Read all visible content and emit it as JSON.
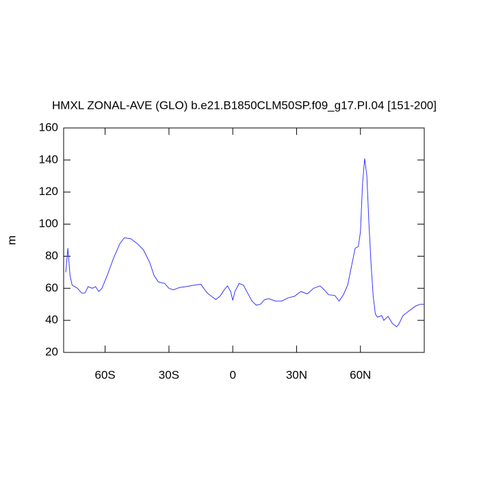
{
  "chart_data": {
    "type": "line",
    "title": "HMXL ZONAL-AVE (GLO) b.e21.B1850CLM50SP.f09_g17.PI.04 [151-200]",
    "y_label": "m",
    "color": "#3333ff",
    "x": [
      -78.5,
      -77.5,
      -76.5,
      -75.5,
      -73,
      -71,
      -69.5,
      -68,
      -66,
      -64.5,
      -63,
      -61.5,
      -59,
      -56,
      -53,
      -51,
      -48,
      -45,
      -42,
      -39,
      -37,
      -35,
      -32,
      -30,
      -28,
      -25,
      -22,
      -18,
      -15,
      -12,
      -10,
      -8,
      -6,
      -4,
      -2.5,
      -1,
      0,
      1,
      3,
      5,
      7,
      9,
      11,
      13,
      15,
      17,
      20,
      23,
      26,
      29,
      32,
      35,
      38,
      41,
      43,
      45,
      48,
      50,
      52,
      54,
      56,
      57.5,
      59,
      60,
      61,
      62,
      63,
      64,
      65,
      66,
      67,
      68,
      70,
      71,
      73,
      75,
      77,
      78,
      80,
      82,
      84,
      86,
      88,
      90
    ],
    "values": [
      70,
      85,
      68,
      62,
      60,
      57,
      57,
      61,
      60,
      61,
      58,
      60,
      68,
      79,
      88,
      91.5,
      91,
      88,
      84,
      76,
      68,
      64,
      63,
      60,
      59,
      60.5,
      61,
      62,
      62.5,
      57,
      55,
      53,
      55,
      59,
      61.5,
      58,
      52.5,
      58,
      63,
      62,
      57,
      52,
      49.5,
      50,
      53,
      53.5,
      52,
      52,
      54,
      55,
      58,
      56.5,
      60,
      61.5,
      59,
      56,
      55.5,
      52,
      56,
      62,
      75,
      85,
      86,
      95,
      125,
      141,
      130,
      100,
      75,
      55,
      44,
      42,
      43,
      40,
      42.5,
      38,
      36,
      37.5,
      43,
      45,
      47,
      49,
      50,
      50
    ],
    "xlim": [
      -79.5,
      90
    ],
    "ylim": [
      20,
      160
    ],
    "xticks": [
      {
        "value": -60,
        "label": "60S"
      },
      {
        "value": -30,
        "label": "30S"
      },
      0,
      {
        "value": 30,
        "label": "30N"
      },
      {
        "value": 60,
        "label": "60N"
      }
    ],
    "yticks": [
      20,
      40,
      60,
      80,
      100,
      120,
      140,
      160
    ]
  }
}
